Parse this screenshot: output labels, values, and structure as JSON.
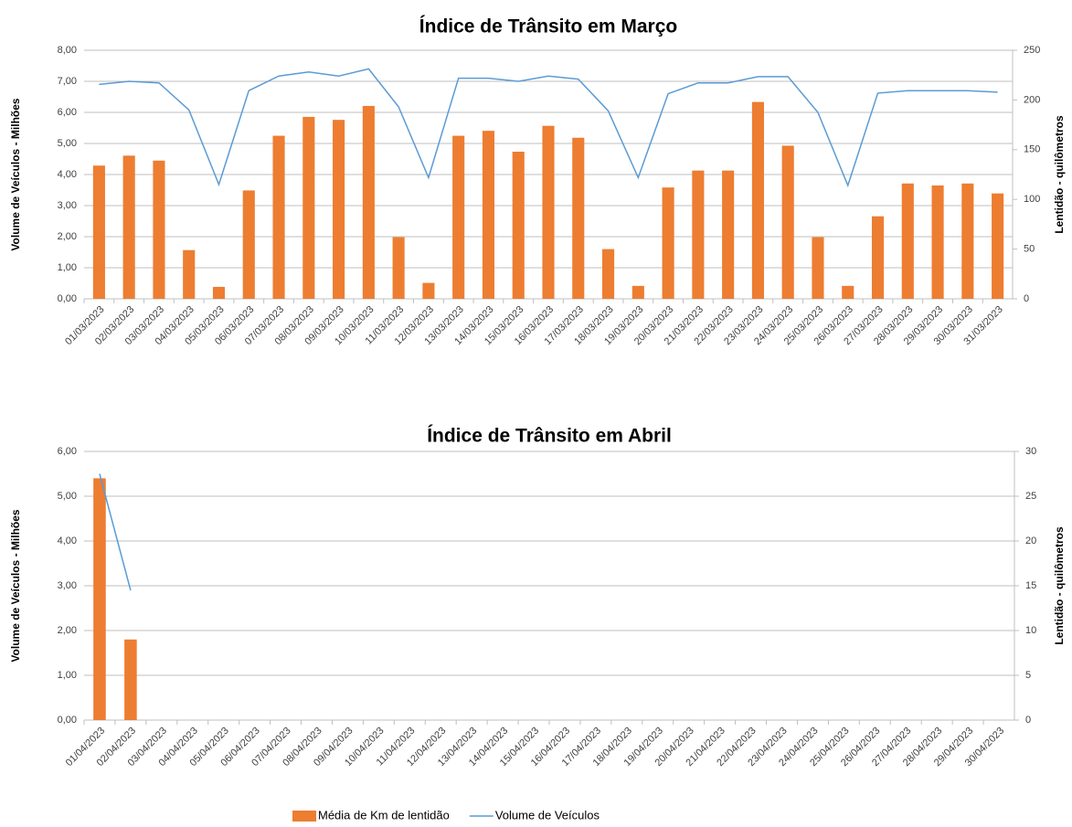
{
  "chart_data": [
    {
      "type": "bar+line",
      "title": "Índice de Trânsito em Março",
      "y_label": "Volume de Veículos  - Milhões",
      "y2_label": "Lentidão - quilômetros",
      "categories": [
        "01/03/2023",
        "02/03/2023",
        "03/03/2023",
        "04/03/2023",
        "05/03/2023",
        "06/03/2023",
        "07/03/2023",
        "08/03/2023",
        "09/03/2023",
        "10/03/2023",
        "11/03/2023",
        "12/03/2023",
        "13/03/2023",
        "14/03/2023",
        "15/03/2023",
        "16/03/2023",
        "17/03/2023",
        "18/03/2023",
        "19/03/2023",
        "20/03/2023",
        "21/03/2023",
        "22/03/2023",
        "23/03/2023",
        "24/03/2023",
        "25/03/2023",
        "26/03/2023",
        "27/03/2023",
        "28/03/2023",
        "29/03/2023",
        "30/03/2023",
        "31/03/2023"
      ],
      "series": [
        {
          "type": "bar",
          "axis": "y2",
          "color": "#ed7d31",
          "values": [
            134,
            144,
            139,
            49,
            12,
            109,
            164,
            183,
            180,
            194,
            62,
            16,
            164,
            169,
            148,
            174,
            162,
            50,
            13,
            112,
            129,
            129,
            198,
            154,
            62,
            13,
            83,
            116,
            114,
            116,
            106
          ]
        },
        {
          "type": "line",
          "axis": "y",
          "color": "#5b9bd5",
          "values": [
            6.9,
            7.0,
            6.95,
            6.08,
            3.68,
            6.7,
            7.17,
            7.3,
            7.17,
            7.4,
            6.18,
            3.9,
            7.1,
            7.1,
            7.0,
            7.17,
            7.07,
            6.05,
            3.9,
            6.6,
            6.95,
            6.95,
            7.15,
            7.15,
            6.0,
            3.65,
            6.62,
            6.7,
            6.7,
            6.7,
            6.65
          ]
        }
      ],
      "ylim": [
        0,
        8
      ],
      "yticks": [
        {
          "value": 0,
          "label": "0,00"
        },
        {
          "value": 1,
          "label": "1,00"
        },
        {
          "value": 2,
          "label": "2,00"
        },
        {
          "value": 3,
          "label": "3,00"
        },
        {
          "value": 4,
          "label": "4,00"
        },
        {
          "value": 5,
          "label": "5,00"
        },
        {
          "value": 6,
          "label": "6,00"
        },
        {
          "value": 7,
          "label": "7,00"
        },
        {
          "value": 8,
          "label": "8,00"
        }
      ],
      "y2lim": [
        0,
        250
      ],
      "y2ticks": [
        0,
        50,
        100,
        150,
        200,
        250
      ],
      "grid": true
    },
    {
      "type": "bar+line",
      "title": "Índice de Trânsito em Abril",
      "y_label": "Volume de Veículos  - Milhões",
      "y2_label": "Lentidão - quilômetros",
      "categories": [
        "01/04/2023",
        "02/04/2023",
        "03/04/2023",
        "04/04/2023",
        "05/04/2023",
        "06/04/2023",
        "07/04/2023",
        "08/04/2023",
        "09/04/2023",
        "10/04/2023",
        "11/04/2023",
        "12/04/2023",
        "13/04/2023",
        "14/04/2023",
        "15/04/2023",
        "16/04/2023",
        "17/04/2023",
        "18/04/2023",
        "19/04/2023",
        "20/04/2023",
        "21/04/2023",
        "22/04/2023",
        "23/04/2023",
        "24/04/2023",
        "25/04/2023",
        "26/04/2023",
        "27/04/2023",
        "28/04/2023",
        "29/04/2023",
        "30/04/2023"
      ],
      "series": [
        {
          "name": "Média de Km de lentidão",
          "type": "bar",
          "axis": "y2",
          "color": "#ed7d31",
          "values": [
            27,
            9,
            null,
            null,
            null,
            null,
            null,
            null,
            null,
            null,
            null,
            null,
            null,
            null,
            null,
            null,
            null,
            null,
            null,
            null,
            null,
            null,
            null,
            null,
            null,
            null,
            null,
            null,
            null,
            null
          ]
        },
        {
          "name": "Volume de Veículos",
          "type": "line",
          "axis": "y",
          "color": "#5b9bd5",
          "values": [
            5.5,
            2.9,
            null,
            null,
            null,
            null,
            null,
            null,
            null,
            null,
            null,
            null,
            null,
            null,
            null,
            null,
            null,
            null,
            null,
            null,
            null,
            null,
            null,
            null,
            null,
            null,
            null,
            null,
            null,
            null
          ]
        }
      ],
      "ylim": [
        0,
        6
      ],
      "yticks": [
        {
          "value": 0,
          "label": "0,00"
        },
        {
          "value": 1,
          "label": "1,00"
        },
        {
          "value": 2,
          "label": "2,00"
        },
        {
          "value": 3,
          "label": "3,00"
        },
        {
          "value": 4,
          "label": "4,00"
        },
        {
          "value": 5,
          "label": "5,00"
        },
        {
          "value": 6,
          "label": "6,00"
        }
      ],
      "y2lim": [
        0,
        30
      ],
      "y2ticks": [
        0,
        5,
        10,
        15,
        20,
        25,
        30
      ],
      "grid": true,
      "legend": "bottom"
    }
  ]
}
